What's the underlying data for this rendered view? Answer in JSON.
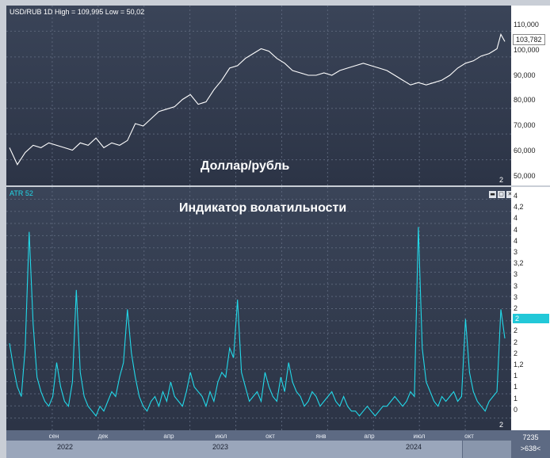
{
  "price_pane": {
    "label": "USD/RUB 1D High = 109,995 Low = 50,02",
    "annotation": "Доллар/рубль",
    "pane_number": "2",
    "current_value": "103,782",
    "axis_ticks": [
      "110,000",
      "100,000",
      "90,000",
      "80,000",
      "70,000",
      "60,000",
      "50,000"
    ]
  },
  "atr_pane": {
    "label": "ATR 52",
    "annotation": "Индикатор волатильности",
    "pane_number": "2",
    "current_value": "2",
    "axis_ticks": [
      "4",
      "4,2",
      "4",
      "4",
      "4",
      "3",
      "3,2",
      "3",
      "3",
      "3",
      "2",
      "2",
      "2",
      "2",
      "2",
      "1,2",
      "1",
      "1",
      "1",
      "0"
    ],
    "buttons": {
      "minimize": "▬",
      "restore": "▢",
      "close": "✕"
    }
  },
  "timeline": {
    "months": [
      "сен",
      "дек",
      "апр",
      "июл",
      "окт",
      "янв",
      "апр",
      "июл",
      "окт"
    ],
    "years": [
      "2022",
      "2023",
      "2024"
    ]
  },
  "corner": {
    "bars": "7235",
    "visible": ">638<"
  },
  "colors": {
    "price_line": "#ffffff",
    "atr_line": "#22d8e8",
    "badge_atr": "#22c8d8"
  },
  "chart_data": [
    {
      "type": "line",
      "title": "USD/RUB 1D High = 109,995 Low = 50,02",
      "ylim": [
        47,
        113
      ],
      "grid": true,
      "x": [
        0,
        10,
        20,
        30,
        40,
        50,
        60,
        70,
        80,
        90,
        100,
        110,
        120,
        130,
        140,
        150,
        160,
        170,
        180,
        190,
        200,
        210,
        220,
        230,
        240,
        250,
        260,
        270,
        280,
        290,
        300,
        310,
        320,
        330,
        340,
        350,
        360,
        370,
        380,
        390,
        400,
        410,
        420,
        430,
        440,
        450,
        460,
        470,
        480,
        490,
        500,
        510,
        520,
        530,
        540,
        550,
        560,
        570,
        580,
        590,
        600,
        610,
        615,
        620,
        625,
        630
      ],
      "series": [
        {
          "name": "USD/RUB",
          "values": [
            60,
            53,
            58,
            61,
            60,
            62,
            61,
            60,
            59,
            62,
            61,
            64,
            60,
            62,
            61,
            63,
            70,
            69,
            72,
            75,
            76,
            77,
            80,
            82,
            78,
            79,
            84,
            88,
            93,
            94,
            97,
            99,
            101,
            100,
            97,
            95,
            92,
            91,
            90,
            90,
            91,
            90,
            92,
            93,
            94,
            95,
            94,
            93,
            92,
            90,
            88,
            86,
            87,
            86,
            87,
            88,
            90,
            93,
            95,
            96,
            98,
            99,
            100,
            101,
            107,
            104
          ]
        }
      ]
    },
    {
      "type": "line",
      "title": "ATR 52",
      "ylim": [
        0,
        4.4
      ],
      "grid": true,
      "x": [
        0,
        5,
        10,
        15,
        20,
        25,
        30,
        35,
        40,
        45,
        50,
        55,
        60,
        65,
        70,
        75,
        80,
        85,
        90,
        95,
        100,
        105,
        110,
        115,
        120,
        125,
        130,
        135,
        140,
        145,
        150,
        155,
        160,
        165,
        170,
        175,
        180,
        185,
        190,
        195,
        200,
        205,
        210,
        215,
        220,
        225,
        230,
        235,
        240,
        245,
        250,
        255,
        260,
        265,
        270,
        275,
        280,
        285,
        290,
        295,
        300,
        305,
        310,
        315,
        320,
        325,
        330,
        335,
        340,
        345,
        350,
        355,
        360,
        365,
        370,
        375,
        380,
        385,
        390,
        395,
        400,
        405,
        410,
        415,
        420,
        425,
        430,
        435,
        440,
        445,
        450,
        455,
        460,
        465,
        470,
        475,
        480,
        485,
        490,
        495,
        500,
        505,
        510,
        515,
        520,
        525,
        530,
        535,
        540,
        545,
        550,
        555,
        560,
        565,
        570,
        575,
        580,
        585,
        590,
        595,
        600,
        605,
        610,
        615,
        620,
        625,
        630
      ],
      "series": [
        {
          "name": "ATR",
          "values": [
            1.6,
            1.1,
            0.7,
            0.5,
            1.5,
            3.9,
            2.0,
            0.9,
            0.6,
            0.4,
            0.3,
            0.5,
            1.2,
            0.7,
            0.4,
            0.3,
            0.8,
            2.7,
            1.0,
            0.5,
            0.3,
            0.2,
            0.1,
            0.3,
            0.2,
            0.4,
            0.6,
            0.5,
            0.9,
            1.2,
            2.3,
            1.4,
            0.9,
            0.5,
            0.3,
            0.2,
            0.4,
            0.5,
            0.3,
            0.6,
            0.4,
            0.8,
            0.5,
            0.4,
            0.3,
            0.6,
            1.0,
            0.7,
            0.6,
            0.5,
            0.3,
            0.6,
            0.4,
            0.8,
            1.0,
            0.9,
            1.5,
            1.3,
            2.5,
            1.0,
            0.7,
            0.4,
            0.5,
            0.6,
            0.4,
            1.0,
            0.7,
            0.5,
            0.4,
            0.9,
            0.6,
            1.2,
            0.8,
            0.6,
            0.5,
            0.3,
            0.4,
            0.6,
            0.5,
            0.3,
            0.4,
            0.5,
            0.6,
            0.4,
            0.3,
            0.5,
            0.3,
            0.2,
            0.2,
            0.1,
            0.2,
            0.3,
            0.2,
            0.1,
            0.2,
            0.3,
            0.3,
            0.4,
            0.5,
            0.4,
            0.3,
            0.4,
            0.6,
            0.5,
            4.0,
            1.5,
            0.8,
            0.6,
            0.4,
            0.3,
            0.5,
            0.4,
            0.5,
            0.6,
            0.4,
            0.5,
            2.1,
            1.0,
            0.6,
            0.4,
            0.3,
            0.2,
            0.4,
            0.5,
            0.6,
            2.3,
            1.7
          ]
        }
      ]
    }
  ]
}
